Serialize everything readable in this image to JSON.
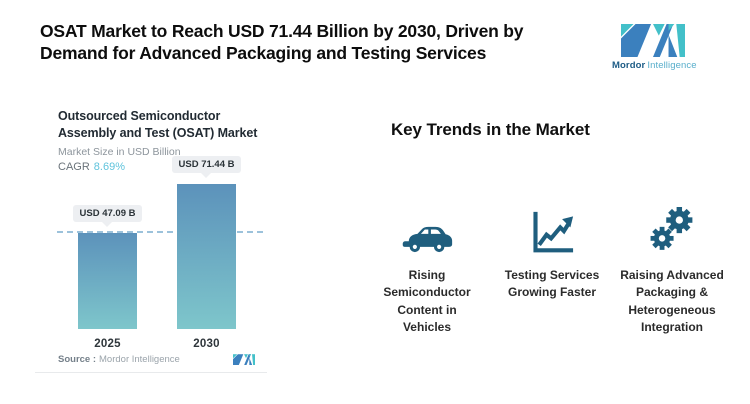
{
  "header": {
    "title": "OSAT Market to Reach USD 71.44 Billion by 2030, Driven by Demand for Advanced Packaging and Testing Services",
    "brand": {
      "mordor": "Mordor",
      "intelligence": "Intelligence"
    }
  },
  "chart_panel": {
    "title": "Outsourced Semiconductor Assembly and Test (OSAT) Market",
    "subtitle": "Market Size in USD Billion",
    "cagr_label": "CAGR",
    "cagr_value": "8.69%",
    "source_label": "Source :",
    "source_value": "Mordor Intelligence"
  },
  "chart_data": {
    "type": "bar",
    "title": "Outsourced Semiconductor Assembly and Test (OSAT) Market",
    "ylabel": "Market Size in USD Billion",
    "categories": [
      "2025",
      "2030"
    ],
    "values": [
      47.09,
      71.44
    ],
    "value_labels": [
      "USD 47.09 B",
      "USD 71.44 B"
    ],
    "unit": "USD Billion",
    "cagr_percent": 8.69,
    "ylim": [
      0,
      71.44
    ],
    "grid": "single dashed horizontal reference line at 2025 value",
    "legend": "none"
  },
  "trends": {
    "heading": "Key Trends in the Market",
    "items": [
      {
        "icon": "car-icon",
        "label": "Rising Semiconductor Content in Vehicles"
      },
      {
        "icon": "line-chart-icon",
        "label": "Testing Services Growing Faster"
      },
      {
        "icon": "gears-icon",
        "label": "Raising Advanced Packaging & Heterogeneous Integration"
      }
    ]
  },
  "colors": {
    "brand_blue": "#3b80be",
    "brand_teal": "#43c0c9",
    "brand_text_dark": "#1d5c86",
    "brand_text_light": "#58aecb",
    "icon_teal": "#1f5e7e",
    "bar_top": "#5c92bb",
    "bar_bottom": "#7ec6cb",
    "cagr_value": "#5fc3dc",
    "dashed_line": "#9cc2db"
  }
}
